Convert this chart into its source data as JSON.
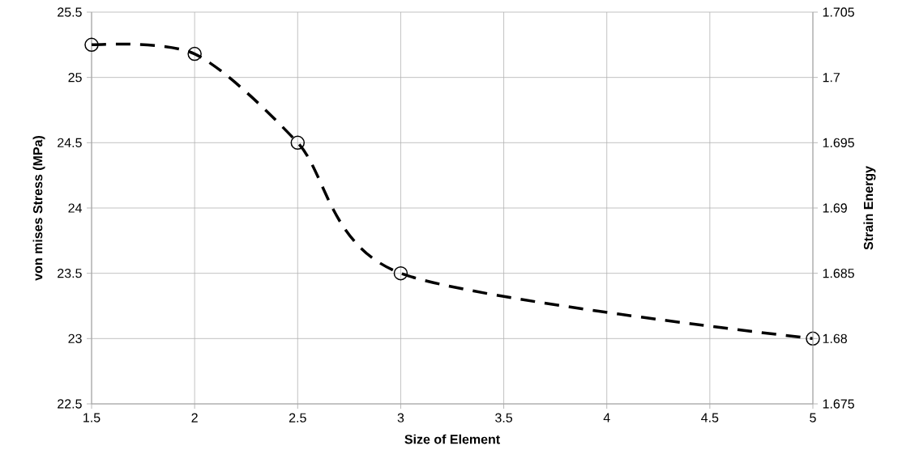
{
  "chart_data": {
    "type": "line",
    "xlabel": "Size of Element",
    "ylabel": "von mises Stress (MPa)",
    "y2label": "Strain Energy",
    "x": [
      1.5,
      2,
      2.5,
      3,
      5
    ],
    "series": [
      {
        "color": "#000000",
        "values": [
          25.25,
          25.18,
          24.5,
          23.5,
          23.0
        ]
      }
    ],
    "xlim": [
      1.5,
      5
    ],
    "xticks": [
      1.5,
      2,
      2.5,
      3,
      3.5,
      4,
      4.5,
      5
    ],
    "ylim": [
      22.5,
      25.5
    ],
    "yticks": [
      22.5,
      23,
      23.5,
      24,
      24.5,
      25,
      25.5
    ],
    "y2lim": [
      1.675,
      1.705
    ],
    "y2ticks": [
      1.675,
      1.68,
      1.685,
      1.69,
      1.695,
      1.7,
      1.705
    ],
    "grid": true,
    "marker": "circle",
    "line_style": "dashed"
  }
}
